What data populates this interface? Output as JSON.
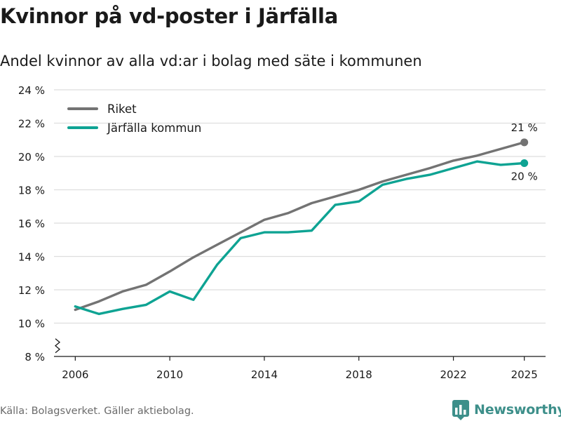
{
  "header": {
    "title": "Kvinnor på vd-poster i Järfälla",
    "subtitle": "Andel kvinnor av alla vd:ar i bolag med säte i kommunen"
  },
  "footer": {
    "source": "Källa: Bolagsverket. Gäller aktiebolag.",
    "brand": "Newsworthy",
    "brand_icon": "bar-chart-logo-icon"
  },
  "colors": {
    "riket": "#737373",
    "jarfalla": "#0ea393",
    "grid": "#dedede",
    "text": "#1a1a1a",
    "brand": "#3d8f8a"
  },
  "chart_data": {
    "type": "line",
    "title": "Kvinnor på vd-poster i Järfälla",
    "subtitle": "Andel kvinnor av alla vd:ar i bolag med säte i kommunen",
    "xlabel": "",
    "ylabel": "",
    "x": [
      2006,
      2007,
      2008,
      2009,
      2010,
      2011,
      2012,
      2013,
      2014,
      2015,
      2016,
      2017,
      2018,
      2019,
      2020,
      2021,
      2022,
      2023,
      2024,
      2025
    ],
    "xticks": [
      2006,
      2010,
      2014,
      2018,
      2022,
      2025
    ],
    "xlim": [
      2005.1,
      2025.9
    ],
    "ylim": [
      8,
      24
    ],
    "yticks": [
      8,
      10,
      12,
      14,
      16,
      18,
      20,
      22,
      24
    ],
    "ytick_suffix": " %",
    "axis_break": true,
    "grid": true,
    "legend_position": "top-left",
    "series": [
      {
        "name": "Riket",
        "color": "#737373",
        "values": [
          10.8,
          11.3,
          11.9,
          12.3,
          13.1,
          13.95,
          14.7,
          15.45,
          16.2,
          16.6,
          17.2,
          17.6,
          18.0,
          18.5,
          18.9,
          19.3,
          19.75,
          20.05,
          20.45,
          20.85
        ],
        "end_label": "21 %",
        "end_label_position": "above"
      },
      {
        "name": "Järfälla kommun",
        "color": "#0ea393",
        "values": [
          11.0,
          10.55,
          10.85,
          11.1,
          11.9,
          11.4,
          13.5,
          15.1,
          15.45,
          15.45,
          15.55,
          17.1,
          17.3,
          18.3,
          18.65,
          18.9,
          19.3,
          19.7,
          19.5,
          19.6
        ],
        "end_label": "20 %",
        "end_label_position": "below"
      }
    ]
  }
}
